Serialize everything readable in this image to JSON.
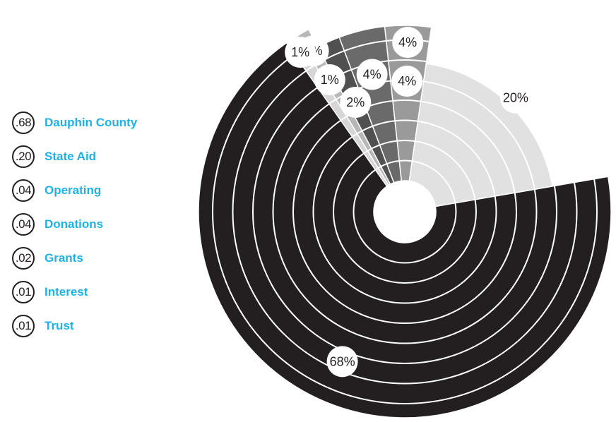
{
  "chart_data": {
    "type": "pie",
    "slices": [
      {
        "legend_value": ".68",
        "label": "Dauphin County",
        "value": 68,
        "display": "68%",
        "color": "#231f20"
      },
      {
        "legend_value": ".20",
        "label": "State Aid",
        "value": 20,
        "display": "20%",
        "color": "#e1e1e1"
      },
      {
        "legend_value": ".04",
        "label": "Operating",
        "value": 4,
        "display": "4%",
        "color": "#9a9a9a"
      },
      {
        "legend_value": ".04",
        "label": "Donations",
        "value": 4,
        "display": "4%",
        "color": "#6a6a6a"
      },
      {
        "legend_value": ".02",
        "label": "Grants",
        "value": 2,
        "display": "2%",
        "color": "#505050"
      },
      {
        "legend_value": ".01",
        "label": "Interest",
        "value": 1,
        "display": "1%",
        "color": "#b7b7b7"
      },
      {
        "legend_value": ".01",
        "label": "Trust",
        "value": 1,
        "display": "1%",
        "color": "#d6d6d6"
      }
    ],
    "legend_position": "left",
    "legend_text_color": "#1fb2e3"
  }
}
